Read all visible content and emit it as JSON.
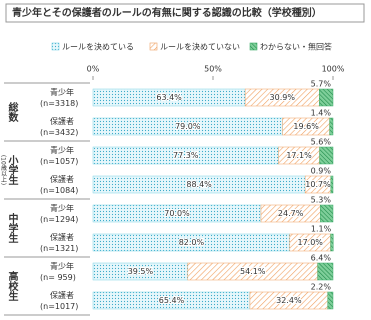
{
  "chart_data": {
    "type": "bar",
    "orientation": "horizontal",
    "stacked": true,
    "title": "青少年とその保護者のルールの有無に関する認識の比較（学校種別）",
    "groups": [
      {
        "name": "総数",
        "rows": [
          0,
          1
        ]
      },
      {
        "name": "小学生",
        "note": "(10歳以上)",
        "rows": [
          2,
          3
        ]
      },
      {
        "name": "中学生",
        "rows": [
          4,
          5
        ]
      },
      {
        "name": "高校生",
        "rows": [
          6,
          7
        ]
      }
    ],
    "categories": [
      "青少年",
      "保護者",
      "青少年",
      "保護者",
      "青少年",
      "保護者",
      "青少年",
      "保護者"
    ],
    "sample_sizes": [
      "(n=3318)",
      "(n=3432)",
      "(n=1057)",
      "(n=1084)",
      "(n=1294)",
      "(n=1321)",
      "(n= 959)",
      "(n=1017)"
    ],
    "series": [
      {
        "name": "ルールを決めている",
        "color": "#7fd3e6",
        "pattern": "dots",
        "values": [
          63.4,
          79.0,
          77.3,
          88.4,
          70.0,
          82.0,
          39.5,
          65.4
        ],
        "value_labels": [
          "63.4%",
          "79.0%",
          "77.3%",
          "88.4%",
          "70.0%",
          "82.0%",
          "39.5%",
          "65.4%"
        ]
      },
      {
        "name": "ルールを決めていない",
        "color": "#f0a060",
        "pattern": "hatch",
        "values": [
          30.9,
          19.6,
          17.1,
          10.7,
          24.7,
          17.0,
          54.1,
          32.4
        ],
        "value_labels": [
          "30.9%",
          "19.6%",
          "17.1%",
          "10.7%",
          "24.7%",
          "17.0%",
          "54.1%",
          "32.4%"
        ]
      },
      {
        "name": "わからない・無回答",
        "color": "#3fae6a",
        "pattern": "stripes",
        "values": [
          5.7,
          1.4,
          5.6,
          0.9,
          5.3,
          1.1,
          6.4,
          2.2
        ],
        "value_labels": [
          "5.7%",
          "1.4%",
          "5.6%",
          "0.9%",
          "5.3%",
          "1.1%",
          "6.4%",
          "2.2%"
        ]
      }
    ],
    "xlim": [
      0,
      100
    ],
    "xticks": [
      {
        "value": 0,
        "label": "0%"
      },
      {
        "value": 50,
        "label": "50%"
      },
      {
        "value": 100,
        "label": "100%"
      }
    ]
  }
}
